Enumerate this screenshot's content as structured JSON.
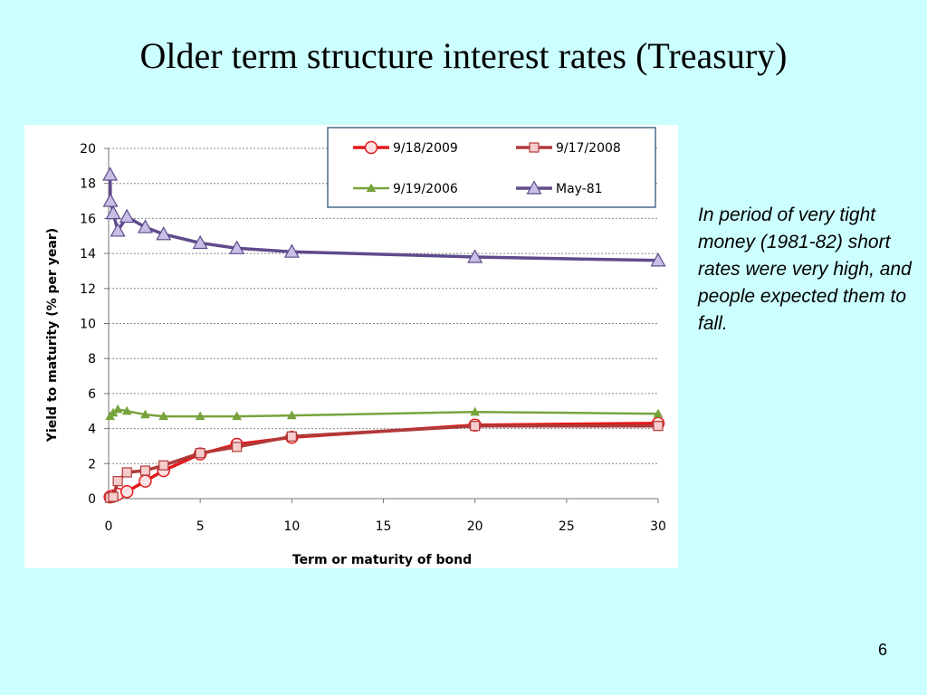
{
  "slide": {
    "title": "Older term structure interest rates (Treasury)",
    "note": "In period of very tight money (1981-82) short rates were very high, and people expected them to fall.",
    "page_number": "6"
  },
  "chart_data": {
    "type": "line",
    "title": "",
    "xlabel": "Term or maturity of bond",
    "ylabel": "Yield to maturity (% per year)",
    "xlim": [
      0,
      30
    ],
    "ylim": [
      0,
      20
    ],
    "x_ticks": [
      0,
      5,
      10,
      15,
      20,
      25,
      30
    ],
    "y_ticks": [
      0,
      2,
      4,
      6,
      8,
      10,
      12,
      14,
      16,
      18,
      20
    ],
    "grid": "horizontal dotted",
    "legend_position": "top-right",
    "series": [
      {
        "name": "9/18/2009",
        "color": "#e31a1c",
        "marker": "circle",
        "points": [
          [
            0.08,
            0.1
          ],
          [
            0.25,
            0.15
          ],
          [
            0.5,
            0.25
          ],
          [
            1,
            0.4
          ],
          [
            2,
            1.0
          ],
          [
            3,
            1.6
          ],
          [
            5,
            2.55
          ],
          [
            7,
            3.1
          ],
          [
            10,
            3.5
          ],
          [
            20,
            4.2
          ],
          [
            30,
            4.3
          ]
        ]
      },
      {
        "name": "9/17/2008",
        "color": "#b03a3a",
        "marker": "square",
        "points": [
          [
            0.08,
            0.05
          ],
          [
            0.25,
            0.1
          ],
          [
            0.5,
            1.0
          ],
          [
            1,
            1.5
          ],
          [
            2,
            1.6
          ],
          [
            3,
            1.9
          ],
          [
            5,
            2.6
          ],
          [
            7,
            2.95
          ],
          [
            10,
            3.55
          ],
          [
            20,
            4.15
          ],
          [
            30,
            4.15
          ]
        ]
      },
      {
        "name": "9/19/2006",
        "color": "#77a33d",
        "marker": "triangle",
        "points": [
          [
            0.08,
            4.7
          ],
          [
            0.25,
            4.9
          ],
          [
            0.5,
            5.1
          ],
          [
            1,
            5.0
          ],
          [
            2,
            4.8
          ],
          [
            3,
            4.7
          ],
          [
            5,
            4.7
          ],
          [
            7,
            4.7
          ],
          [
            10,
            4.75
          ],
          [
            20,
            4.95
          ],
          [
            30,
            4.85
          ]
        ]
      },
      {
        "name": "May-81",
        "color": "#5f4b8b",
        "marker": "triangle",
        "points": [
          [
            0.08,
            18.5
          ],
          [
            0.1,
            17.0
          ],
          [
            0.25,
            16.3
          ],
          [
            0.5,
            15.3
          ],
          [
            1,
            16.1
          ],
          [
            2,
            15.5
          ],
          [
            3,
            15.1
          ],
          [
            5,
            14.6
          ],
          [
            7,
            14.3
          ],
          [
            10,
            14.1
          ],
          [
            20,
            13.8
          ],
          [
            30,
            13.6
          ]
        ]
      }
    ]
  }
}
